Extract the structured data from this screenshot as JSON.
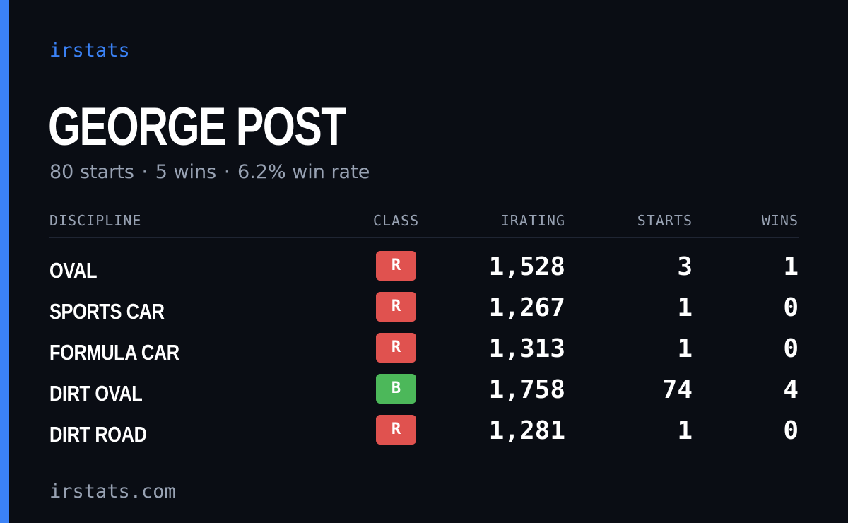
{
  "brand": "irstats",
  "player": {
    "name": "GEORGE POST",
    "starts": "80 starts",
    "wins": "5 wins",
    "win_rate": "6.2% win rate",
    "separator": "·"
  },
  "table": {
    "headers": {
      "discipline": "DISCIPLINE",
      "class": "CLASS",
      "irating": "IRATING",
      "starts": "STARTS",
      "wins": "WINS"
    },
    "rows": [
      {
        "discipline": "OVAL",
        "class": "R",
        "class_color": "#e0524f",
        "irating": "1,528",
        "starts": "3",
        "wins": "1"
      },
      {
        "discipline": "SPORTS CAR",
        "class": "R",
        "class_color": "#e0524f",
        "irating": "1,267",
        "starts": "1",
        "wins": "0"
      },
      {
        "discipline": "FORMULA CAR",
        "class": "R",
        "class_color": "#e0524f",
        "irating": "1,313",
        "starts": "1",
        "wins": "0"
      },
      {
        "discipline": "DIRT OVAL",
        "class": "B",
        "class_color": "#4cb85a",
        "irating": "1,758",
        "starts": "74",
        "wins": "4"
      },
      {
        "discipline": "DIRT ROAD",
        "class": "R",
        "class_color": "#e0524f",
        "irating": "1,281",
        "starts": "1",
        "wins": "0"
      }
    ]
  },
  "footer": {
    "domain": "irstats.com"
  },
  "colors": {
    "background": "#0a0d14",
    "accent": "#3b82f6",
    "muted_text": "#98a2b3",
    "class_r": "#e0524f",
    "class_b": "#4cb85a"
  }
}
